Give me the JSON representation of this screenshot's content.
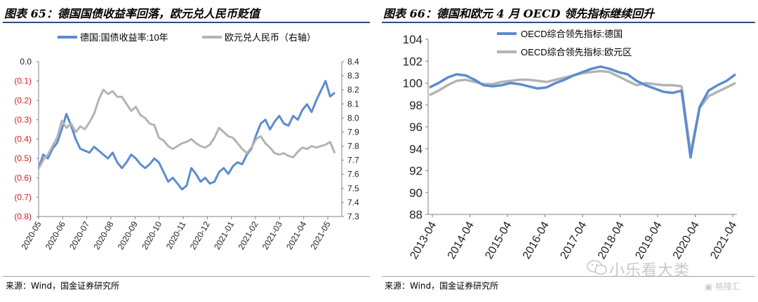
{
  "left": {
    "title": "图表 65：德国国债收益率回落，欧元兑人民币贬值",
    "source": "来源：Wind，国金证券研究所",
    "chart_data": {
      "type": "line",
      "x_ticks": [
        "2020-05",
        "2020-06",
        "2020-07",
        "2020-08",
        "2020-09",
        "2020-10",
        "2020-11",
        "2020-12",
        "2021-01",
        "2021-02",
        "2021-03",
        "2021-04",
        "2021-05"
      ],
      "y_left_ticks": [
        "0.0",
        "(0.1)",
        "(0.2)",
        "(0.3)",
        "(0.4)",
        "(0.5)",
        "(0.6)",
        "(0.7)",
        "(0.8)"
      ],
      "y_left_lim": [
        -0.8,
        0.0
      ],
      "y_right_ticks": [
        "8.4",
        "8.3",
        "8.2",
        "8.1",
        "8.0",
        "7.9",
        "7.8",
        "7.7",
        "7.6",
        "7.5",
        "7.4",
        "7.3"
      ],
      "y_right_lim": [
        7.3,
        8.4
      ],
      "series": [
        {
          "name": "德国:国债收益率:10年",
          "axis": "left",
          "color": "#5b8ccf",
          "values": [
            -0.55,
            -0.48,
            -0.5,
            -0.45,
            -0.42,
            -0.35,
            -0.27,
            -0.33,
            -0.4,
            -0.45,
            -0.46,
            -0.47,
            -0.44,
            -0.46,
            -0.48,
            -0.5,
            -0.47,
            -0.52,
            -0.55,
            -0.52,
            -0.48,
            -0.5,
            -0.53,
            -0.55,
            -0.53,
            -0.5,
            -0.52,
            -0.57,
            -0.62,
            -0.6,
            -0.63,
            -0.66,
            -0.64,
            -0.55,
            -0.58,
            -0.62,
            -0.6,
            -0.63,
            -0.62,
            -0.57,
            -0.55,
            -0.58,
            -0.54,
            -0.52,
            -0.53,
            -0.48,
            -0.45,
            -0.38,
            -0.32,
            -0.3,
            -0.35,
            -0.31,
            -0.28,
            -0.32,
            -0.33,
            -0.28,
            -0.3,
            -0.25,
            -0.22,
            -0.26,
            -0.2,
            -0.15,
            -0.1,
            -0.18,
            -0.16
          ]
        },
        {
          "name": "欧元兑人民币（右轴）",
          "axis": "right",
          "color": "#b3b3b3",
          "values": [
            7.64,
            7.7,
            7.74,
            7.8,
            7.86,
            7.98,
            7.93,
            7.96,
            7.9,
            7.94,
            7.92,
            7.97,
            8.03,
            8.13,
            8.2,
            8.17,
            8.19,
            8.15,
            8.15,
            8.1,
            8.05,
            8.08,
            8.02,
            8.0,
            7.96,
            7.95,
            7.86,
            7.84,
            7.8,
            7.78,
            7.8,
            7.82,
            7.83,
            7.85,
            7.82,
            7.8,
            7.79,
            7.81,
            7.86,
            7.93,
            7.9,
            7.87,
            7.86,
            7.82,
            7.78,
            7.75,
            7.79,
            7.85,
            7.87,
            7.82,
            7.79,
            7.75,
            7.74,
            7.75,
            7.73,
            7.72,
            7.76,
            7.79,
            7.78,
            7.8,
            7.79,
            7.8,
            7.81,
            7.83,
            7.75
          ]
        }
      ]
    }
  },
  "right": {
    "title": "图表 66：德国和欧元 4 月 OECD 领先指标继续回升",
    "source": "来源：Wind，国金证券研究所",
    "chart_data": {
      "type": "line",
      "x_ticks": [
        "2013-04",
        "2014-04",
        "2015-04",
        "2016-04",
        "2017-04",
        "2018-04",
        "2019-04",
        "2020-04",
        "2021-04"
      ],
      "y_ticks": [
        "104",
        "102",
        "100",
        "98",
        "96",
        "94",
        "92",
        "90",
        "88"
      ],
      "ylim": [
        88,
        104
      ],
      "series": [
        {
          "name": "OECD综合领先指标:德国",
          "color": "#5b8ccf",
          "values": [
            99.6,
            100.0,
            100.5,
            100.8,
            100.7,
            100.3,
            99.8,
            99.7,
            99.8,
            100.0,
            99.9,
            99.7,
            99.5,
            99.6,
            100.0,
            100.3,
            100.7,
            101.0,
            101.3,
            101.5,
            101.3,
            101.0,
            100.8,
            100.2,
            99.8,
            99.5,
            99.2,
            99.1,
            99.3,
            93.2,
            97.8,
            99.3,
            99.8,
            100.2,
            100.8
          ]
        },
        {
          "name": "OECD综合领先指标:欧元区",
          "color": "#b3b3b3",
          "values": [
            98.9,
            99.3,
            99.8,
            100.2,
            100.3,
            100.1,
            99.9,
            99.9,
            100.1,
            100.2,
            100.3,
            100.3,
            100.2,
            100.1,
            100.3,
            100.5,
            100.7,
            100.9,
            101.0,
            101.1,
            101.0,
            100.6,
            100.2,
            99.8,
            100.0,
            99.9,
            99.8,
            99.8,
            99.7,
            93.6,
            97.7,
            98.8,
            99.2,
            99.6,
            100.0
          ]
        }
      ]
    }
  },
  "watermark": {
    "text": "小乐看大类",
    "badge": "格隆汇"
  }
}
